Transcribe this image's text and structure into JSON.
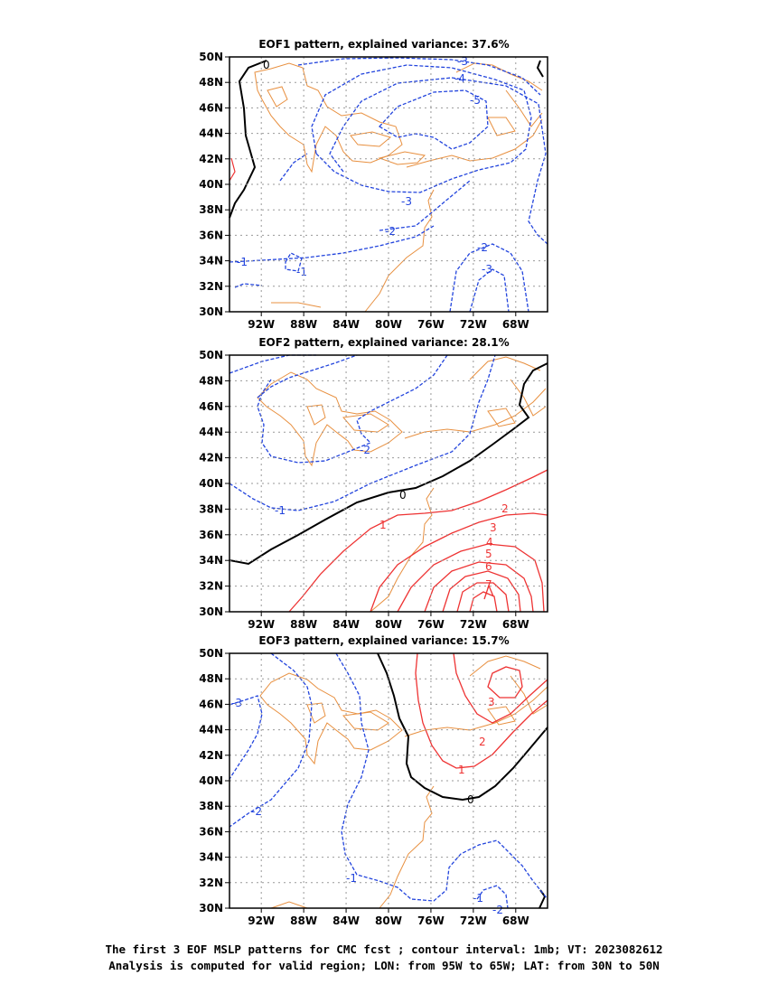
{
  "panels": [
    {
      "title": "EOF1 pattern, explained variance: 37.6%"
    },
    {
      "title": "EOF2 pattern, explained variance: 28.1%"
    },
    {
      "title": "EOF3 pattern, explained variance: 15.7%"
    }
  ],
  "lat_ticks": [
    "50N",
    "48N",
    "46N",
    "44N",
    "42N",
    "40N",
    "38N",
    "36N",
    "34N",
    "32N",
    "30N"
  ],
  "lon_ticks": [
    "92W",
    "88W",
    "84W",
    "80W",
    "76W",
    "72W",
    "68W"
  ],
  "caption": {
    "line1": "The first 3 EOF MSLP patterns for CMC fcst ; contour interval: 1mb; VT: 2023082612",
    "line2": "Analysis is computed for valid region; LON: from 95W to 65W; LAT: from 30N to 50N"
  },
  "colors": {
    "negative": "#2244dd",
    "positive": "#ee3333",
    "zero": "#000000",
    "coast": "#e89040",
    "grid": "#999999"
  },
  "contour_labels": [
    [
      "-3",
      "-4",
      "-5",
      "0",
      "-3",
      "-2",
      "-1",
      "-1",
      "-2",
      "-3"
    ],
    [
      "-1",
      "-2",
      "0",
      "1",
      "2",
      "3",
      "4",
      "5",
      "6",
      "7",
      "-1"
    ],
    [
      "-3",
      "-2",
      "-1",
      "0",
      "1",
      "2",
      "3",
      "-1",
      "-2"
    ]
  ]
}
